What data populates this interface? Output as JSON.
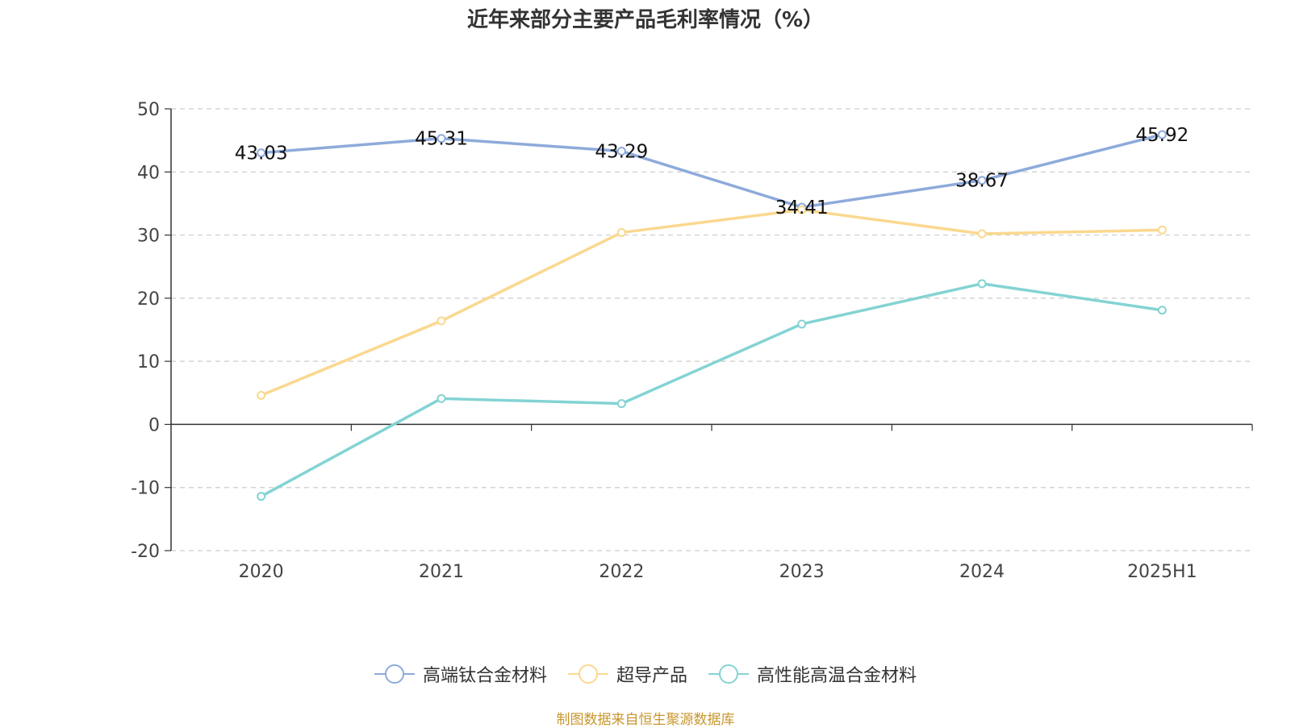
{
  "chart_data": {
    "type": "line",
    "title": "近年来部分主要产品毛利率情况（%）",
    "categories": [
      "2020",
      "2021",
      "2022",
      "2023",
      "2024",
      "2025H1"
    ],
    "ylim": [
      -20,
      50
    ],
    "yticks": [
      "50",
      "40",
      "30",
      "20",
      "10",
      "0",
      "-10",
      "-20"
    ],
    "grid": true,
    "legend_position": "bottom",
    "series": [
      {
        "name": "高端钛合金材料",
        "color": "#8eaadb",
        "values": [
          43.03,
          45.31,
          43.29,
          34.41,
          38.67,
          45.92
        ],
        "labels": [
          "43.03",
          "45.31",
          "43.29",
          "34.41",
          "38.67",
          "45.92"
        ]
      },
      {
        "name": "超导产品",
        "color": "#fbd88f",
        "values": [
          4.6,
          16.4,
          30.4,
          34.0,
          30.2,
          30.8
        ]
      },
      {
        "name": "高性能高温合金材料",
        "color": "#84d3d3",
        "values": [
          -11.4,
          4.1,
          3.3,
          15.9,
          22.3,
          18.1
        ]
      }
    ],
    "source": "制图数据来自恒生聚源数据库"
  }
}
